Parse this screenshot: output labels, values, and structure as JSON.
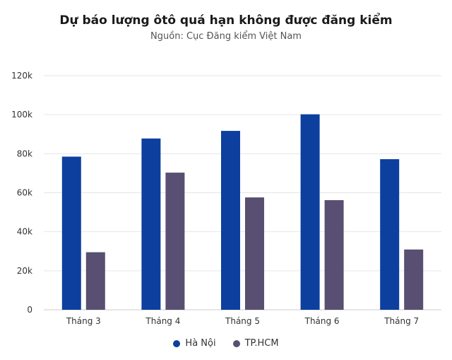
{
  "chart_data": {
    "type": "bar",
    "title": "Dự báo lượng ôtô quá hạn không được đăng kiểm",
    "subtitle": "Nguồn: Cục Đăng kiểm Việt Nam",
    "categories": [
      "Tháng 3",
      "Tháng 4",
      "Tháng 5",
      "Tháng 6",
      "Tháng 7"
    ],
    "series": [
      {
        "name": "Hà Nội",
        "color": "#0d3f9f",
        "values": [
          78500,
          87800,
          91700,
          100200,
          77200
        ]
      },
      {
        "name": "TP.HCM",
        "color": "#584f72",
        "values": [
          29500,
          70300,
          57600,
          56200,
          30900
        ]
      }
    ],
    "ylim": [
      0,
      120000
    ],
    "yticks": [
      0,
      20000,
      40000,
      60000,
      80000,
      100000,
      120000
    ],
    "ytick_labels": [
      "0",
      "20k",
      "40k",
      "60k",
      "80k",
      "100k",
      "120k"
    ],
    "grid": true,
    "legend": "bottom"
  }
}
